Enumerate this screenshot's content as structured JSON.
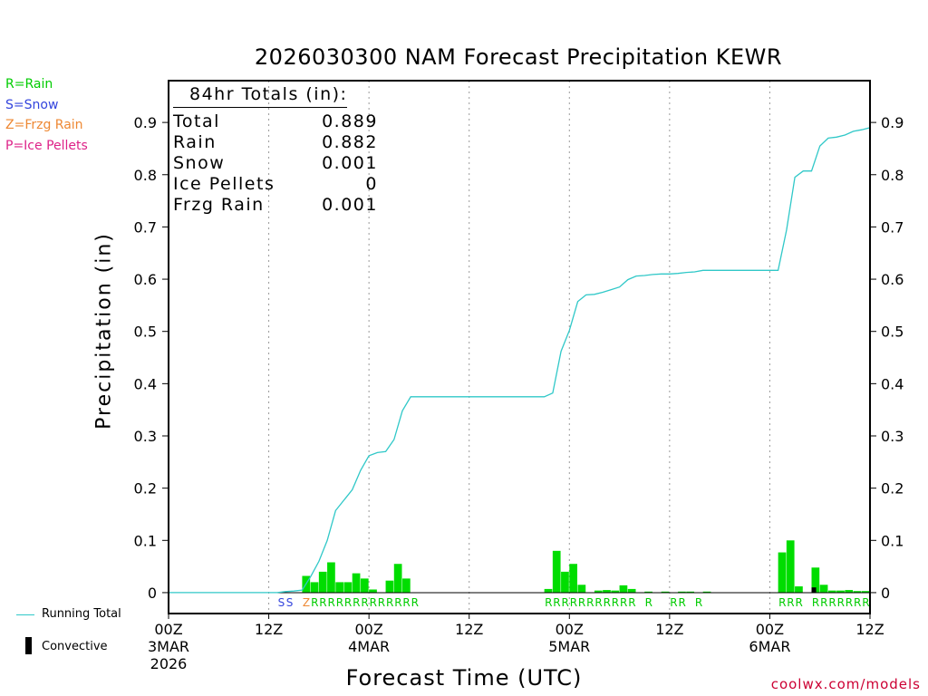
{
  "chart_data": {
    "type": "bar",
    "title": "2026030300 NAM Forecast Precipitation KEWR",
    "xlabel": "Forecast Time (UTC)",
    "ylabel": "Precipitation (in)",
    "ylim": [
      -0.04,
      0.98
    ],
    "xlim_hours": [
      0,
      84
    ],
    "y_ticks": [
      0,
      0.1,
      0.2,
      0.3,
      0.4,
      0.5,
      0.6,
      0.7,
      0.8,
      0.9
    ],
    "y_tick_labels": [
      "0",
      "0.1",
      "0.2",
      "0.3",
      "0.4",
      "0.5",
      "0.6",
      "0.7",
      "0.8",
      "0.9"
    ],
    "x_ticks": [
      {
        "hour": 0,
        "label": "00Z",
        "date": "3MAR",
        "year": "2026"
      },
      {
        "hour": 12,
        "label": "12Z",
        "date": "",
        "year": ""
      },
      {
        "hour": 24,
        "label": "00Z",
        "date": "4MAR",
        "year": ""
      },
      {
        "hour": 36,
        "label": "12Z",
        "date": "",
        "year": ""
      },
      {
        "hour": 48,
        "label": "00Z",
        "date": "5MAR",
        "year": ""
      },
      {
        "hour": 60,
        "label": "12Z",
        "date": "",
        "year": ""
      },
      {
        "hour": 72,
        "label": "00Z",
        "date": "6MAR",
        "year": ""
      },
      {
        "hour": 84,
        "label": "12Z",
        "date": "",
        "year": ""
      }
    ],
    "gridlines_hours": [
      12,
      24,
      36,
      48,
      60,
      72
    ],
    "bars": [
      {
        "hour": 17,
        "value": 0.032,
        "color": "#00dd00"
      },
      {
        "hour": 18,
        "value": 0.02,
        "color": "#00dd00"
      },
      {
        "hour": 19,
        "value": 0.04,
        "color": "#00dd00"
      },
      {
        "hour": 20,
        "value": 0.058,
        "color": "#00dd00"
      },
      {
        "hour": 21,
        "value": 0.02,
        "color": "#00dd00"
      },
      {
        "hour": 22,
        "value": 0.02,
        "color": "#00dd00"
      },
      {
        "hour": 23,
        "value": 0.037,
        "color": "#00dd00"
      },
      {
        "hour": 24,
        "value": 0.027,
        "color": "#00dd00"
      },
      {
        "hour": 25,
        "value": 0.006,
        "color": "#00dd00"
      },
      {
        "hour": 27,
        "value": 0.023,
        "color": "#00dd00"
      },
      {
        "hour": 28,
        "value": 0.055,
        "color": "#00dd00"
      },
      {
        "hour": 29,
        "value": 0.027,
        "color": "#00dd00"
      },
      {
        "hour": 46,
        "value": 0.007,
        "color": "#00dd00"
      },
      {
        "hour": 47,
        "value": 0.08,
        "color": "#00dd00"
      },
      {
        "hour": 48,
        "value": 0.04,
        "color": "#00dd00"
      },
      {
        "hour": 49,
        "value": 0.055,
        "color": "#00dd00"
      },
      {
        "hour": 50,
        "value": 0.015,
        "color": "#00dd00"
      },
      {
        "hour": 52,
        "value": 0.004,
        "color": "#00dd00"
      },
      {
        "hour": 53,
        "value": 0.005,
        "color": "#00dd00"
      },
      {
        "hour": 54,
        "value": 0.004,
        "color": "#00dd00"
      },
      {
        "hour": 55,
        "value": 0.014,
        "color": "#00dd00"
      },
      {
        "hour": 56,
        "value": 0.007,
        "color": "#00dd00"
      },
      {
        "hour": 58,
        "value": 0.002,
        "color": "#00dd00"
      },
      {
        "hour": 60,
        "value": 0.002,
        "color": "#00dd00"
      },
      {
        "hour": 62,
        "value": 0.002,
        "color": "#00dd00"
      },
      {
        "hour": 63,
        "value": 0.002,
        "color": "#00dd00"
      },
      {
        "hour": 65,
        "value": 0.002,
        "color": "#00dd00"
      },
      {
        "hour": 74,
        "value": 0.077,
        "color": "#00dd00"
      },
      {
        "hour": 75,
        "value": 0.1,
        "color": "#00dd00"
      },
      {
        "hour": 76,
        "value": 0.012,
        "color": "#00dd00"
      },
      {
        "hour": 78,
        "value": 0.048,
        "color": "#00dd00"
      },
      {
        "hour": 79,
        "value": 0.015,
        "color": "#00dd00"
      },
      {
        "hour": 80,
        "value": 0.004,
        "color": "#00dd00"
      },
      {
        "hour": 81,
        "value": 0.004,
        "color": "#00dd00"
      },
      {
        "hour": 82,
        "value": 0.005,
        "color": "#00dd00"
      },
      {
        "hour": 83,
        "value": 0.003,
        "color": "#00dd00"
      },
      {
        "hour": 84,
        "value": 0.003,
        "color": "#00dd00"
      }
    ],
    "convective_bars": [
      {
        "hour": 78,
        "value": 0.01
      }
    ],
    "running_total": {
      "name": "Running Total",
      "color": "#30c8c8",
      "points": [
        [
          0,
          0
        ],
        [
          12,
          0
        ],
        [
          13,
          0
        ],
        [
          14,
          0.002
        ],
        [
          15,
          0.003
        ],
        [
          16,
          0.005
        ],
        [
          17,
          0.03
        ],
        [
          18,
          0.06
        ],
        [
          19,
          0.1
        ],
        [
          20,
          0.157
        ],
        [
          21,
          0.177
        ],
        [
          22,
          0.197
        ],
        [
          23,
          0.234
        ],
        [
          24,
          0.262
        ],
        [
          25,
          0.268
        ],
        [
          26,
          0.27
        ],
        [
          27,
          0.293
        ],
        [
          28,
          0.348
        ],
        [
          29,
          0.375
        ],
        [
          30,
          0.375
        ],
        [
          36,
          0.375
        ],
        [
          42,
          0.375
        ],
        [
          45,
          0.375
        ],
        [
          46,
          0.382
        ],
        [
          47,
          0.462
        ],
        [
          48,
          0.502
        ],
        [
          49,
          0.557
        ],
        [
          50,
          0.57
        ],
        [
          51,
          0.571
        ],
        [
          52,
          0.575
        ],
        [
          53,
          0.58
        ],
        [
          54,
          0.585
        ],
        [
          55,
          0.599
        ],
        [
          56,
          0.606
        ],
        [
          57,
          0.607
        ],
        [
          58,
          0.609
        ],
        [
          59,
          0.61
        ],
        [
          60,
          0.61
        ],
        [
          61,
          0.611
        ],
        [
          62,
          0.613
        ],
        [
          63,
          0.614
        ],
        [
          64,
          0.617
        ],
        [
          66,
          0.617
        ],
        [
          70,
          0.617
        ],
        [
          73,
          0.617
        ],
        [
          74,
          0.694
        ],
        [
          75,
          0.795
        ],
        [
          76,
          0.807
        ],
        [
          77,
          0.807
        ],
        [
          78,
          0.855
        ],
        [
          79,
          0.87
        ],
        [
          80,
          0.872
        ],
        [
          81,
          0.876
        ],
        [
          82,
          0.883
        ],
        [
          83,
          0.886
        ],
        [
          84,
          0.89
        ]
      ]
    },
    "precip_type_markers": [
      {
        "hour": 14,
        "code": "S",
        "color": "#3344dd"
      },
      {
        "hour": 15,
        "code": "S",
        "color": "#3344dd"
      },
      {
        "hour": 17,
        "code": "Z",
        "color": "#ee8833"
      },
      {
        "hour": 18,
        "code": "R",
        "color": "#00cc00"
      },
      {
        "hour": 19,
        "code": "R",
        "color": "#00cc00"
      },
      {
        "hour": 20,
        "code": "R",
        "color": "#00cc00"
      },
      {
        "hour": 21,
        "code": "R",
        "color": "#00cc00"
      },
      {
        "hour": 22,
        "code": "R",
        "color": "#00cc00"
      },
      {
        "hour": 23,
        "code": "R",
        "color": "#00cc00"
      },
      {
        "hour": 24,
        "code": "R",
        "color": "#00cc00"
      },
      {
        "hour": 25,
        "code": "R",
        "color": "#00cc00"
      },
      {
        "hour": 26,
        "code": "R",
        "color": "#00cc00"
      },
      {
        "hour": 27,
        "code": "R",
        "color": "#00cc00"
      },
      {
        "hour": 28,
        "code": "R",
        "color": "#00cc00"
      },
      {
        "hour": 29,
        "code": "R",
        "color": "#00cc00"
      },
      {
        "hour": 30,
        "code": "R",
        "color": "#00cc00"
      },
      {
        "hour": 46,
        "code": "R",
        "color": "#00cc00"
      },
      {
        "hour": 47,
        "code": "R",
        "color": "#00cc00"
      },
      {
        "hour": 48,
        "code": "R",
        "color": "#00cc00"
      },
      {
        "hour": 49,
        "code": "R",
        "color": "#00cc00"
      },
      {
        "hour": 50,
        "code": "R",
        "color": "#00cc00"
      },
      {
        "hour": 51,
        "code": "R",
        "color": "#00cc00"
      },
      {
        "hour": 52,
        "code": "R",
        "color": "#00cc00"
      },
      {
        "hour": 53,
        "code": "R",
        "color": "#00cc00"
      },
      {
        "hour": 54,
        "code": "R",
        "color": "#00cc00"
      },
      {
        "hour": 55,
        "code": "R",
        "color": "#00cc00"
      },
      {
        "hour": 56,
        "code": "R",
        "color": "#00cc00"
      },
      {
        "hour": 58,
        "code": "R",
        "color": "#00cc00"
      },
      {
        "hour": 61,
        "code": "R",
        "color": "#00cc00"
      },
      {
        "hour": 62,
        "code": "R",
        "color": "#00cc00"
      },
      {
        "hour": 64,
        "code": "R",
        "color": "#00cc00"
      },
      {
        "hour": 74,
        "code": "R",
        "color": "#00cc00"
      },
      {
        "hour": 75,
        "code": "R",
        "color": "#00cc00"
      },
      {
        "hour": 76,
        "code": "R",
        "color": "#00cc00"
      },
      {
        "hour": 78,
        "code": "R",
        "color": "#00cc00"
      },
      {
        "hour": 79,
        "code": "R",
        "color": "#00cc00"
      },
      {
        "hour": 80,
        "code": "R",
        "color": "#00cc00"
      },
      {
        "hour": 81,
        "code": "R",
        "color": "#00cc00"
      },
      {
        "hour": 82,
        "code": "R",
        "color": "#00cc00"
      },
      {
        "hour": 83,
        "code": "R",
        "color": "#00cc00"
      },
      {
        "hour": 84,
        "code": "R",
        "color": "#00cc00"
      }
    ]
  },
  "type_legend": [
    {
      "text": "R=Rain",
      "color": "#00cc00"
    },
    {
      "text": "S=Snow",
      "color": "#3344dd"
    },
    {
      "text": "Z=Frzg Rain",
      "color": "#ee8833"
    },
    {
      "text": "P=Ice Pellets",
      "color": "#dd2288"
    }
  ],
  "totals": {
    "header": "84hr Totals (in):",
    "rows": [
      {
        "label": "Total",
        "value": "0.889"
      },
      {
        "label": "Rain",
        "value": "0.882"
      },
      {
        "label": "Snow",
        "value": "0.001"
      },
      {
        "label": "Ice Pellets",
        "value": "0"
      },
      {
        "label": "Frzg Rain",
        "value": "0.001"
      }
    ]
  },
  "bottom_legend": {
    "running_total": "Running Total",
    "convective": "Convective"
  },
  "footer": "coolwx.com/models"
}
